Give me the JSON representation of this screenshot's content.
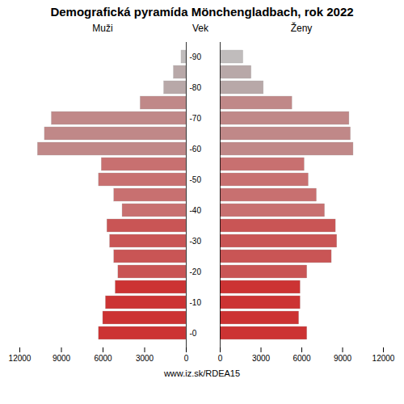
{
  "chart_data": {
    "type": "pyramid",
    "title": "Demografická pyramída Mönchengladbach, rok 2022",
    "orientation": "horizontal",
    "ylabel": "Vek",
    "caption": "www.iz.sk/RDEA15",
    "categories": [
      "-0",
      null,
      "-10",
      null,
      "-20",
      null,
      "-30",
      null,
      "-40",
      null,
      "-50",
      null,
      "-60",
      null,
      "-70",
      null,
      "-80",
      null,
      "-90"
    ],
    "series": [
      {
        "name": "Muži",
        "values": [
          6300,
          6000,
          5800,
          5100,
          4900,
          5200,
          5500,
          5700,
          4600,
          5200,
          6300,
          6100,
          10700,
          10200,
          9700,
          3300,
          1600,
          900,
          350
        ],
        "colors": [
          "#cc3333",
          "#cc3333",
          "#cc3333",
          "#cc3333",
          "#c95555",
          "#c95555",
          "#c95555",
          "#c95555",
          "#c87070",
          "#c87070",
          "#c87070",
          "#c87070",
          "#c08888",
          "#c08888",
          "#c08888",
          "#c08888",
          "#b8a8a8",
          "#b8a8a8",
          "#c0bcbc"
        ]
      },
      {
        "name": "Ženy",
        "values": [
          6400,
          5800,
          5900,
          5900,
          6400,
          8200,
          8600,
          8500,
          7700,
          7100,
          6500,
          6200,
          9800,
          9600,
          9500,
          5300,
          3200,
          2300,
          1700
        ],
        "colors": [
          "#cc3333",
          "#cc3333",
          "#cc3333",
          "#cc3333",
          "#c95555",
          "#c95555",
          "#c95555",
          "#c95555",
          "#c87070",
          "#c87070",
          "#c87070",
          "#c87070",
          "#c08888",
          "#c08888",
          "#c08888",
          "#c08888",
          "#b8a8a8",
          "#b8a8a8",
          "#c0bcbc"
        ]
      }
    ],
    "xlim": [
      0,
      12000
    ],
    "xticks": [
      0,
      3000,
      6000,
      9000,
      12000
    ],
    "grid": false
  }
}
